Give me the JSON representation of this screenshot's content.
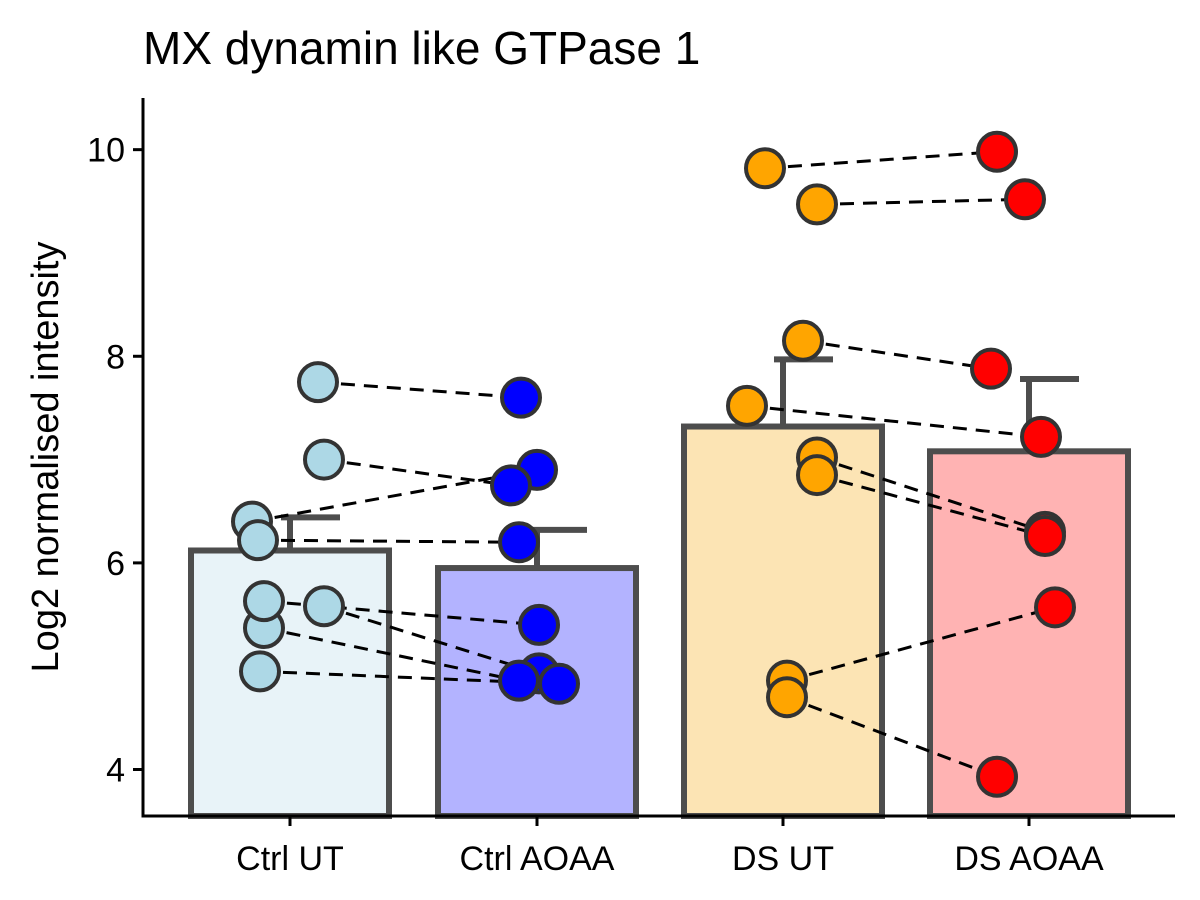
{
  "chart_data": {
    "type": "bar",
    "title": "MX dynamin like GTPase 1",
    "xlabel": "",
    "ylabel": "Log2 normalised intensity",
    "ylim": [
      3.55,
      10.5
    ],
    "yticks": [
      4,
      6,
      8,
      10
    ],
    "grid": false,
    "legend": "none",
    "categories": [
      "Ctrl UT",
      "Ctrl AOAA",
      "DS UT",
      "DS AOAA"
    ],
    "bars": [
      {
        "category": "Ctrl UT",
        "mean": 6.12,
        "error_upper": 6.44,
        "fill": "#E8F3F8",
        "point_color": "#ADD8E6"
      },
      {
        "category": "Ctrl AOAA",
        "mean": 5.95,
        "error_upper": 6.32,
        "fill": "#B3B3FF",
        "point_color": "#0000FF"
      },
      {
        "category": "DS UT",
        "mean": 7.32,
        "error_upper": 7.97,
        "fill": "#FCE4B4",
        "point_color": "#FFA500"
      },
      {
        "category": "DS AOAA",
        "mean": 7.08,
        "error_upper": 7.78,
        "fill": "#FFB3B3",
        "point_color": "#FF0000"
      }
    ],
    "paired_points": [
      {
        "group_pair": [
          "Ctrl UT",
          "Ctrl AOAA"
        ],
        "from": [
          7.75,
          6.4,
          7.0,
          6.22,
          5.58,
          5.37,
          5.63,
          4.95
        ],
        "to": [
          7.6,
          6.9,
          6.75,
          6.2,
          4.93,
          4.86,
          5.4,
          4.83
        ]
      },
      {
        "group_pair": [
          "DS UT",
          "DS AOAA"
        ],
        "from": [
          9.82,
          9.47,
          8.15,
          7.52,
          7.02,
          6.85,
          4.86,
          4.7
        ],
        "to": [
          9.98,
          9.52,
          7.88,
          7.22,
          6.3,
          6.26,
          5.57,
          3.93
        ]
      }
    ]
  },
  "colors": {
    "bar_outline": "#4D4D4D",
    "point_outline": "#333333",
    "axis": "#000000",
    "pair_line": "#000000"
  }
}
